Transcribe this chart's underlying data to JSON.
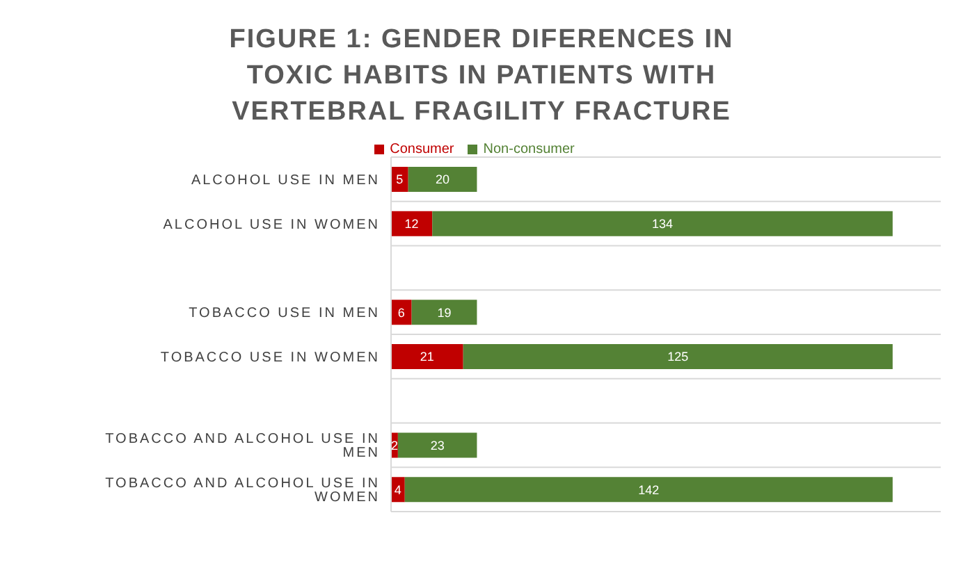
{
  "chart_data": {
    "type": "bar",
    "orientation": "horizontal",
    "stacked": true,
    "title": "FIGURE 1: GENDER DIFERENCES IN TOXIC HABITS IN PATIENTS WITH VERTEBRAL FRAGILITY FRACTURE",
    "categories": [
      "ALCOHOL USE IN MEN",
      "ALCOHOL USE IN WOMEN",
      null,
      "TOBACCO USE IN MEN",
      "TOBACCO USE IN WOMEN",
      null,
      "TOBACCO AND ALCOHOL USE IN MEN",
      "TOBACCO AND ALCOHOL USE IN WOMEN"
    ],
    "series": [
      {
        "name": "Consumer",
        "color": "#c00000",
        "values": [
          5,
          12,
          null,
          6,
          21,
          null,
          2,
          4
        ]
      },
      {
        "name": "Non-consumer",
        "color": "#548235",
        "values": [
          20,
          134,
          null,
          19,
          125,
          null,
          23,
          142
        ]
      }
    ],
    "xlim": [
      0,
      160
    ],
    "tick_labels": "y",
    "grid": "y",
    "legend": "top",
    "data_labels": true
  }
}
